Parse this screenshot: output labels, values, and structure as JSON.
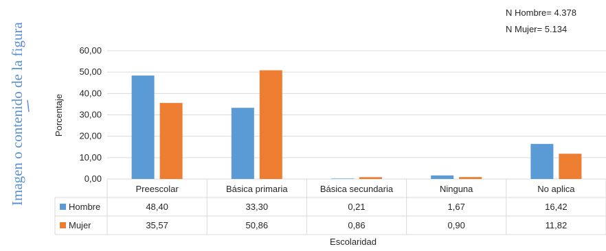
{
  "side_caption": "Imagen o contenido de la figura",
  "sample_notes": [
    "N Hombre= 4.378",
    "N Mujer= 5.134"
  ],
  "colors": {
    "Hombre": "#5B9BD5",
    "Mujer": "#ED7D31",
    "grid": "#d9d9d9",
    "caption": "#5b8fd0"
  },
  "chart_data": {
    "type": "bar",
    "title": "",
    "xlabel": "Escolaridad",
    "ylabel": "Porcentaje",
    "ylim": [
      0,
      60
    ],
    "yticks": [
      "0,00",
      "10,00",
      "20,00",
      "30,00",
      "40,00",
      "50,00",
      "60,00"
    ],
    "ytick_values": [
      0,
      10,
      20,
      30,
      40,
      50,
      60
    ],
    "categories": [
      "Preescolar",
      "Básica primaria",
      "Básica secundaria",
      "Ninguna",
      "No aplica"
    ],
    "series": [
      {
        "name": "Hombre",
        "values": [
          48.4,
          33.3,
          0.21,
          1.67,
          16.42
        ],
        "labels": [
          "48,40",
          "33,30",
          "0,21",
          "1,67",
          "16,42"
        ]
      },
      {
        "name": "Mujer",
        "values": [
          35.57,
          50.86,
          0.86,
          0.9,
          11.82
        ],
        "labels": [
          "35,57",
          "50,86",
          "0,86",
          "0,90",
          "11,82"
        ]
      }
    ],
    "grid": true,
    "legend": "data-table"
  }
}
